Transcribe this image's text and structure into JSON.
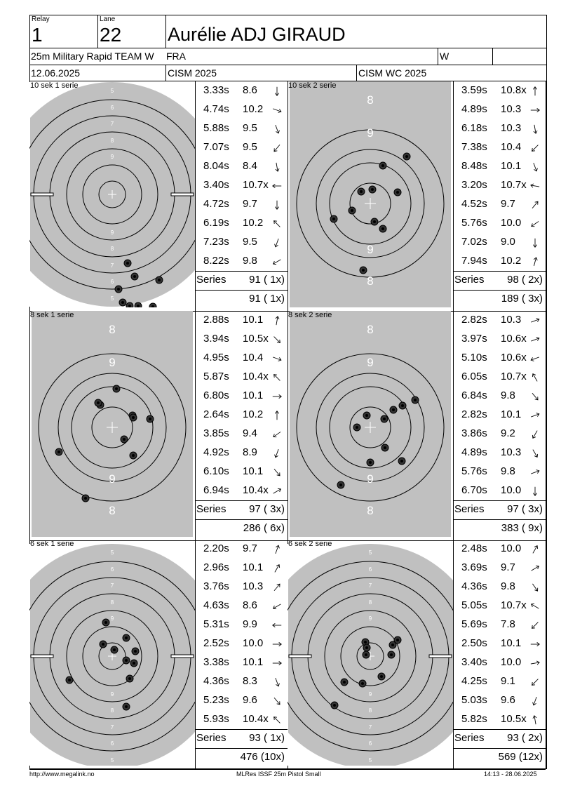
{
  "header": {
    "relay_label": "Relay",
    "relay": "1",
    "lane_label": "Lane",
    "lane": "22",
    "name": "Aurélie ADJ GIRAUD",
    "event": "25m Military Rapid TEAM W",
    "nation": "FRA",
    "gender": "W",
    "date": "12.06.2025",
    "competition": "CISM 2025",
    "championship": "CISM WC 2025"
  },
  "series": [
    {
      "label": "10 sek 1 serie",
      "target": "precision",
      "shots": [
        {
          "time": "3.33s",
          "score": "8.6",
          "dir": 180
        },
        {
          "time": "4.74s",
          "score": "10.2",
          "dir": 110
        },
        {
          "time": "5.88s",
          "score": "9.5",
          "dir": 160
        },
        {
          "time": "7.07s",
          "score": "9.5",
          "dir": 220
        },
        {
          "time": "8.04s",
          "score": "8.4",
          "dir": 170
        },
        {
          "time": "3.40s",
          "score": "10.7x",
          "dir": 270
        },
        {
          "time": "4.72s",
          "score": "9.7",
          "dir": 180
        },
        {
          "time": "6.19s",
          "score": "10.2",
          "dir": 315
        },
        {
          "time": "7.23s",
          "score": "9.5",
          "dir": 200
        },
        {
          "time": "8.22s",
          "score": "9.8",
          "dir": 240
        }
      ],
      "series_label": "Series",
      "series_total": "91 ( 1x)",
      "running_total": "91 ( 1x)"
    },
    {
      "label": "10 sek 2 serie",
      "target": "rapid",
      "shots": [
        {
          "time": "3.59s",
          "score": "10.8x",
          "dir": 0
        },
        {
          "time": "4.89s",
          "score": "10.3",
          "dir": 90
        },
        {
          "time": "6.18s",
          "score": "10.3",
          "dir": 170
        },
        {
          "time": "7.38s",
          "score": "10.4",
          "dir": 225
        },
        {
          "time": "8.48s",
          "score": "10.1",
          "dir": 160
        },
        {
          "time": "3.20s",
          "score": "10.7x",
          "dir": 280
        },
        {
          "time": "4.52s",
          "score": "9.7",
          "dir": 40
        },
        {
          "time": "5.76s",
          "score": "10.0",
          "dir": 235
        },
        {
          "time": "7.02s",
          "score": "9.0",
          "dir": 180
        },
        {
          "time": "7.94s",
          "score": "10.2",
          "dir": 15
        }
      ],
      "series_label": "Series",
      "series_total": "98 ( 2x)",
      "running_total": "189 ( 3x)"
    },
    {
      "label": "8 sek 1 serie",
      "target": "rapid",
      "shots": [
        {
          "time": "2.88s",
          "score": "10.1",
          "dir": 10
        },
        {
          "time": "3.94s",
          "score": "10.5x",
          "dir": 135
        },
        {
          "time": "4.95s",
          "score": "10.4",
          "dir": 110
        },
        {
          "time": "5.87s",
          "score": "10.4x",
          "dir": 315
        },
        {
          "time": "6.80s",
          "score": "10.1",
          "dir": 90
        },
        {
          "time": "2.64s",
          "score": "10.2",
          "dir": 0
        },
        {
          "time": "3.85s",
          "score": "9.4",
          "dir": 235
        },
        {
          "time": "4.92s",
          "score": "8.9",
          "dir": 200
        },
        {
          "time": "6.10s",
          "score": "10.1",
          "dir": 140
        },
        {
          "time": "6.94s",
          "score": "10.4x",
          "dir": 60
        }
      ],
      "series_label": "Series",
      "series_total": "97 ( 3x)",
      "running_total": "286 ( 6x)"
    },
    {
      "label": "8 sek 2 serie",
      "target": "rapid",
      "shots": [
        {
          "time": "2.82s",
          "score": "10.3",
          "dir": 70
        },
        {
          "time": "3.97s",
          "score": "10.6x",
          "dir": 70
        },
        {
          "time": "5.10s",
          "score": "10.6x",
          "dir": 250
        },
        {
          "time": "6.05s",
          "score": "10.7x",
          "dir": 330
        },
        {
          "time": "6.84s",
          "score": "9.8",
          "dir": 140
        },
        {
          "time": "2.82s",
          "score": "10.1",
          "dir": 70
        },
        {
          "time": "3.86s",
          "score": "9.2",
          "dir": 210
        },
        {
          "time": "4.89s",
          "score": "10.3",
          "dir": 150
        },
        {
          "time": "5.76s",
          "score": "9.8",
          "dir": 70
        },
        {
          "time": "6.70s",
          "score": "10.0",
          "dir": 180
        }
      ],
      "series_label": "Series",
      "series_total": "97 ( 3x)",
      "running_total": "383 ( 9x)"
    },
    {
      "label": "6 sek 1 serie",
      "target": "precision",
      "shots": [
        {
          "time": "2.20s",
          "score": "9.7",
          "dir": 20
        },
        {
          "time": "2.96s",
          "score": "10.1",
          "dir": 30
        },
        {
          "time": "3.76s",
          "score": "10.3",
          "dir": 40
        },
        {
          "time": "4.63s",
          "score": "8.6",
          "dir": 240
        },
        {
          "time": "5.31s",
          "score": "9.9",
          "dir": 270
        },
        {
          "time": "2.52s",
          "score": "10.0",
          "dir": 90
        },
        {
          "time": "3.38s",
          "score": "10.1",
          "dir": 90
        },
        {
          "time": "4.36s",
          "score": "8.3",
          "dir": 160
        },
        {
          "time": "5.23s",
          "score": "9.6",
          "dir": 140
        },
        {
          "time": "5.93s",
          "score": "10.4x",
          "dir": 315
        }
      ],
      "series_label": "Series",
      "series_total": "93 ( 1x)",
      "running_total": "476 (10x)"
    },
    {
      "label": "6 sek 2 serie",
      "target": "precision",
      "shots": [
        {
          "time": "2.48s",
          "score": "10.0",
          "dir": 30
        },
        {
          "time": "3.69s",
          "score": "9.7",
          "dir": 60
        },
        {
          "time": "4.36s",
          "score": "9.8",
          "dir": 145
        },
        {
          "time": "5.05s",
          "score": "10.7x",
          "dir": 300
        },
        {
          "time": "5.69s",
          "score": "7.8",
          "dir": 225
        },
        {
          "time": "2.50s",
          "score": "10.1",
          "dir": 90
        },
        {
          "time": "3.40s",
          "score": "10.0",
          "dir": 80
        },
        {
          "time": "4.25s",
          "score": "9.1",
          "dir": 225
        },
        {
          "time": "5.03s",
          "score": "9.6",
          "dir": 200
        },
        {
          "time": "5.82s",
          "score": "10.5x",
          "dir": 350
        }
      ],
      "series_label": "Series",
      "series_total": "93 ( 2x)",
      "running_total": "569 (12x)"
    }
  ],
  "footer": {
    "url": "http://www.megalink.no",
    "software": "MLRes ISSF 25m Pistol Small",
    "timestamp": "14:13 - 28.06.2025"
  },
  "colors": {
    "target_bg": "#c0c0c0",
    "ink": "#000000",
    "paper": "#ffffff"
  }
}
